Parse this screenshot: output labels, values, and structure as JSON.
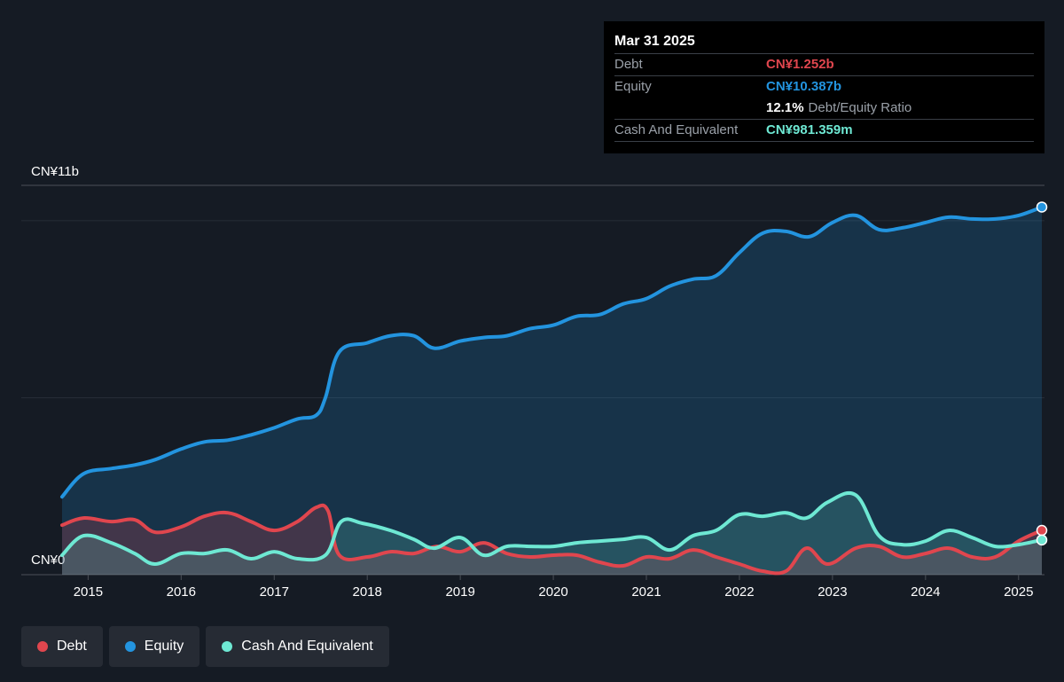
{
  "tooltip": {
    "date": "Mar 31 2025",
    "debt_label": "Debt",
    "debt_value": "CN¥1.252b",
    "equity_label": "Equity",
    "equity_value": "CN¥10.387b",
    "ratio_value": "12.1%",
    "ratio_label": "Debt/Equity Ratio",
    "cash_label": "Cash And Equivalent",
    "cash_value": "CN¥981.359m"
  },
  "legend": [
    {
      "label": "Debt",
      "color": "#e0464e"
    },
    {
      "label": "Equity",
      "color": "#2394df"
    },
    {
      "label": "Cash And Equivalent",
      "color": "#6ee8d3"
    }
  ],
  "chart_data": {
    "type": "area",
    "ylim": [
      0,
      11
    ],
    "y_tick_labels": [
      "CN¥0",
      "CN¥11b"
    ],
    "x_tick_labels": [
      "2015",
      "2016",
      "2017",
      "2018",
      "2019",
      "2020",
      "2021",
      "2022",
      "2023",
      "2024",
      "2025"
    ],
    "x_range": [
      2014.72,
      2025.25
    ],
    "units": "CN¥ billions",
    "series": [
      {
        "name": "Debt",
        "color": "#e0464e",
        "x": [
          2014.72,
          2014.95,
          2015.25,
          2015.5,
          2015.72,
          2016.0,
          2016.25,
          2016.5,
          2016.75,
          2017.0,
          2017.25,
          2017.45,
          2017.58,
          2017.7,
          2018.0,
          2018.25,
          2018.5,
          2018.75,
          2019.0,
          2019.25,
          2019.5,
          2019.75,
          2020.0,
          2020.25,
          2020.5,
          2020.75,
          2021.0,
          2021.25,
          2021.5,
          2021.75,
          2022.0,
          2022.25,
          2022.5,
          2022.72,
          2022.95,
          2023.25,
          2023.5,
          2023.75,
          2024.0,
          2024.25,
          2024.5,
          2024.75,
          2025.0,
          2025.25
        ],
        "values": [
          1.4,
          1.6,
          1.5,
          1.55,
          1.2,
          1.35,
          1.65,
          1.75,
          1.5,
          1.25,
          1.5,
          1.9,
          1.8,
          0.55,
          0.5,
          0.65,
          0.6,
          0.8,
          0.65,
          0.9,
          0.6,
          0.5,
          0.55,
          0.55,
          0.35,
          0.25,
          0.5,
          0.45,
          0.7,
          0.5,
          0.3,
          0.1,
          0.1,
          0.75,
          0.3,
          0.75,
          0.8,
          0.5,
          0.6,
          0.75,
          0.5,
          0.5,
          0.95,
          1.252
        ]
      },
      {
        "name": "Equity",
        "color": "#2394df",
        "x": [
          2014.72,
          2014.95,
          2015.25,
          2015.5,
          2015.72,
          2016.0,
          2016.25,
          2016.5,
          2016.75,
          2017.0,
          2017.25,
          2017.45,
          2017.55,
          2017.7,
          2018.0,
          2018.25,
          2018.5,
          2018.72,
          2019.0,
          2019.25,
          2019.5,
          2019.75,
          2020.0,
          2020.25,
          2020.5,
          2020.75,
          2021.0,
          2021.25,
          2021.5,
          2021.75,
          2022.0,
          2022.25,
          2022.5,
          2022.75,
          2023.0,
          2023.25,
          2023.5,
          2023.75,
          2024.0,
          2024.25,
          2024.5,
          2024.75,
          2025.0,
          2025.25
        ],
        "values": [
          2.2,
          2.85,
          3.0,
          3.1,
          3.25,
          3.55,
          3.75,
          3.8,
          3.95,
          4.15,
          4.4,
          4.5,
          5.0,
          6.3,
          6.55,
          6.75,
          6.75,
          6.4,
          6.6,
          6.7,
          6.75,
          6.95,
          7.05,
          7.3,
          7.35,
          7.65,
          7.8,
          8.15,
          8.35,
          8.45,
          9.1,
          9.65,
          9.7,
          9.55,
          9.95,
          10.15,
          9.75,
          9.8,
          9.95,
          10.1,
          10.05,
          10.05,
          10.15,
          10.387
        ]
      },
      {
        "name": "Cash And Equivalent",
        "color": "#6ee8d3",
        "x": [
          2014.72,
          2014.95,
          2015.25,
          2015.5,
          2015.72,
          2016.0,
          2016.25,
          2016.5,
          2016.75,
          2017.0,
          2017.25,
          2017.55,
          2017.72,
          2017.95,
          2018.25,
          2018.5,
          2018.72,
          2019.0,
          2019.25,
          2019.5,
          2019.75,
          2020.0,
          2020.25,
          2020.5,
          2020.75,
          2021.0,
          2021.25,
          2021.5,
          2021.75,
          2022.0,
          2022.25,
          2022.5,
          2022.72,
          2022.95,
          2023.25,
          2023.5,
          2023.75,
          2024.0,
          2024.25,
          2024.5,
          2024.75,
          2025.0,
          2025.25
        ],
        "values": [
          0.55,
          1.1,
          0.9,
          0.6,
          0.3,
          0.6,
          0.6,
          0.7,
          0.45,
          0.65,
          0.45,
          0.55,
          1.5,
          1.45,
          1.25,
          1.0,
          0.75,
          1.05,
          0.55,
          0.8,
          0.8,
          0.8,
          0.9,
          0.95,
          1.0,
          1.05,
          0.7,
          1.1,
          1.25,
          1.7,
          1.65,
          1.75,
          1.6,
          2.05,
          2.25,
          1.1,
          0.85,
          0.95,
          1.25,
          1.05,
          0.8,
          0.85,
          0.981
        ]
      }
    ]
  }
}
